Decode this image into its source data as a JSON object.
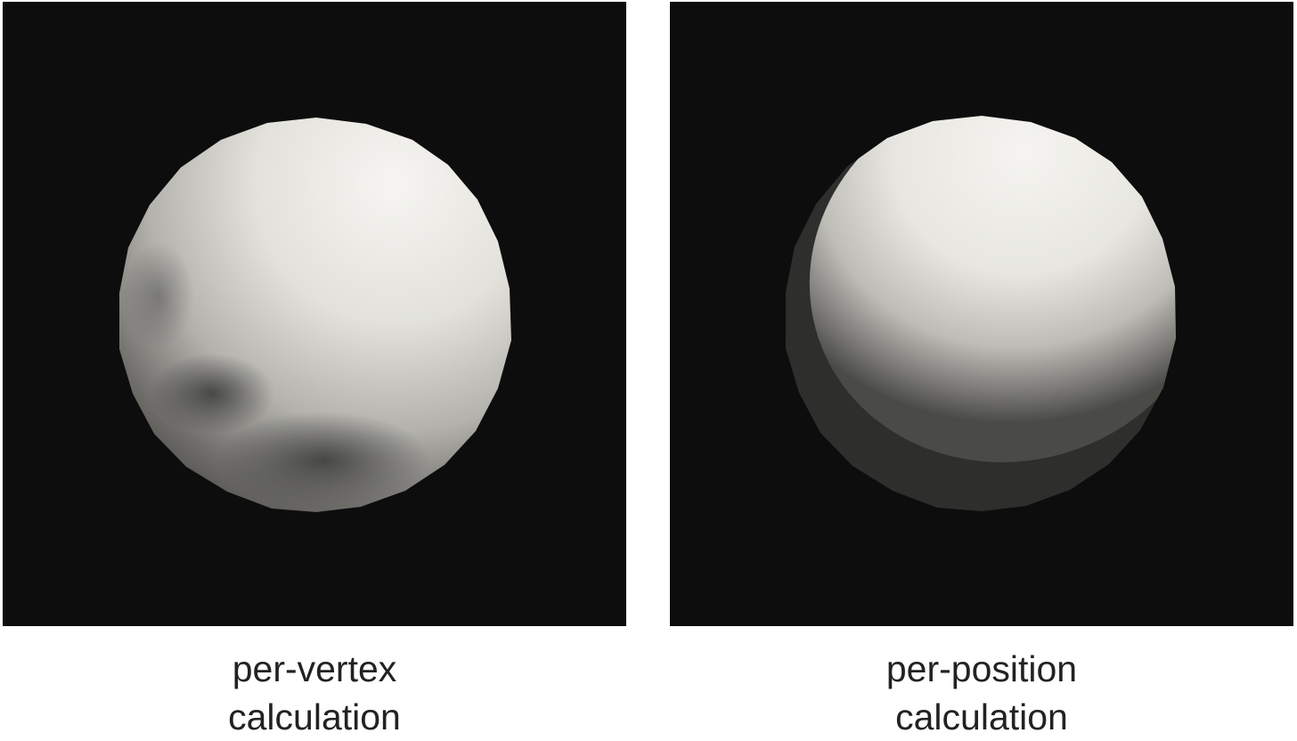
{
  "colors": {
    "background": "#0d0d0d",
    "page": "#ffffff",
    "caption_text": "#222222",
    "sphere_highlight": "#f3f2ee",
    "sphere_shadow": "#2e2e2c"
  },
  "panels": [
    {
      "caption_line1": "per-vertex",
      "caption_line2": "calculation"
    },
    {
      "caption_line1": "per-position",
      "caption_line2": "calculation"
    }
  ]
}
